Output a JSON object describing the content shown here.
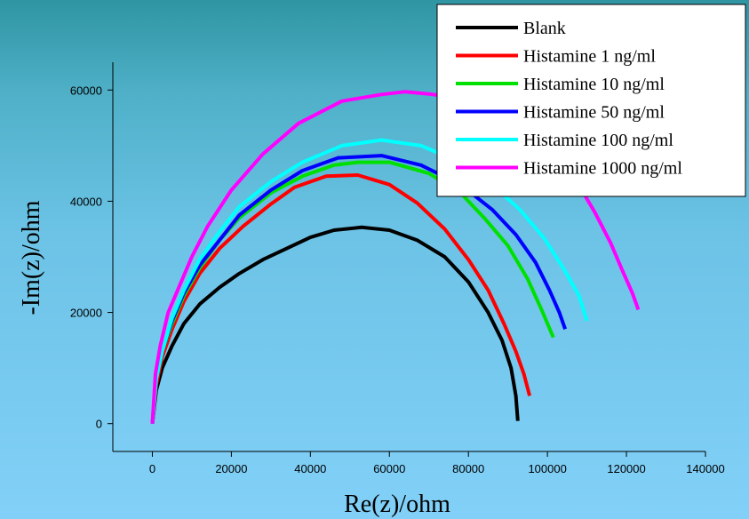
{
  "chart_data": {
    "type": "line",
    "title": "",
    "xlabel": "Re(z)/ohm",
    "ylabel": "-Im(z)/ohm",
    "xlim": [
      -10000,
      140000
    ],
    "ylim": [
      -5000,
      65000
    ],
    "xticks": [
      0,
      20000,
      40000,
      60000,
      80000,
      100000,
      120000,
      140000
    ],
    "yticks": [
      0,
      20000,
      40000,
      60000
    ],
    "legend_position": "top-right",
    "grid": false,
    "series": [
      {
        "name": "Blank",
        "color": "#000000",
        "points": [
          [
            0,
            0
          ],
          [
            1000,
            6000
          ],
          [
            2500,
            10000
          ],
          [
            5000,
            14000
          ],
          [
            8000,
            18000
          ],
          [
            12000,
            21500
          ],
          [
            17000,
            24500
          ],
          [
            22000,
            27000
          ],
          [
            28000,
            29500
          ],
          [
            34000,
            31500
          ],
          [
            40000,
            33500
          ],
          [
            46000,
            34800
          ],
          [
            53000,
            35300
          ],
          [
            60000,
            34800
          ],
          [
            67000,
            33000
          ],
          [
            74000,
            30000
          ],
          [
            80000,
            25500
          ],
          [
            85000,
            20000
          ],
          [
            88500,
            15000
          ],
          [
            90800,
            10000
          ],
          [
            92000,
            5000
          ],
          [
            92500,
            500
          ]
        ]
      },
      {
        "name": "Histamine 1 ng/ml",
        "color": "#ff0000",
        "points": [
          [
            0,
            0
          ],
          [
            1000,
            7000
          ],
          [
            2500,
            12000
          ],
          [
            5000,
            17000
          ],
          [
            8000,
            22000
          ],
          [
            12000,
            27000
          ],
          [
            17000,
            31500
          ],
          [
            23000,
            35500
          ],
          [
            30000,
            39500
          ],
          [
            36000,
            42500
          ],
          [
            44000,
            44500
          ],
          [
            52000,
            44700
          ],
          [
            60000,
            43000
          ],
          [
            67000,
            39700
          ],
          [
            74000,
            35000
          ],
          [
            80000,
            29500
          ],
          [
            85000,
            24000
          ],
          [
            89000,
            18000
          ],
          [
            92000,
            13000
          ],
          [
            94000,
            9000
          ],
          [
            95500,
            5000
          ]
        ]
      },
      {
        "name": "Histamine 10 ng/ml",
        "color": "#00e000",
        "points": [
          [
            0,
            0
          ],
          [
            1000,
            8000
          ],
          [
            2500,
            13000
          ],
          [
            5000,
            18000
          ],
          [
            8000,
            23000
          ],
          [
            12000,
            28000
          ],
          [
            17000,
            33000
          ],
          [
            22000,
            37000
          ],
          [
            30000,
            41500
          ],
          [
            38000,
            44500
          ],
          [
            46000,
            46500
          ],
          [
            52000,
            47000
          ],
          [
            60000,
            47000
          ],
          [
            70000,
            45000
          ],
          [
            78000,
            41500
          ],
          [
            84000,
            37000
          ],
          [
            90000,
            32000
          ],
          [
            95000,
            26000
          ],
          [
            98500,
            20500
          ],
          [
            101500,
            15500
          ]
        ]
      },
      {
        "name": "Histamine 50 ng/ml",
        "color": "#0000ff",
        "points": [
          [
            0,
            0
          ],
          [
            1000,
            8000
          ],
          [
            2500,
            13000
          ],
          [
            5000,
            18500
          ],
          [
            8000,
            23500
          ],
          [
            12000,
            28500
          ],
          [
            17000,
            33000
          ],
          [
            22000,
            37500
          ],
          [
            30000,
            42000
          ],
          [
            38000,
            45500
          ],
          [
            47000,
            47800
          ],
          [
            58000,
            48200
          ],
          [
            68000,
            46500
          ],
          [
            78000,
            43000
          ],
          [
            86000,
            38500
          ],
          [
            92000,
            34000
          ],
          [
            97000,
            29000
          ],
          [
            100500,
            24000
          ],
          [
            103000,
            20000
          ],
          [
            104500,
            17000
          ]
        ]
      },
      {
        "name": "Histamine 100 ng/ml",
        "color": "#00ffff",
        "points": [
          [
            0,
            0
          ],
          [
            1000,
            8000
          ],
          [
            2500,
            13000
          ],
          [
            5000,
            19000
          ],
          [
            8000,
            24000
          ],
          [
            12000,
            29500
          ],
          [
            17000,
            34500
          ],
          [
            22000,
            39000
          ],
          [
            30000,
            43500
          ],
          [
            38000,
            47000
          ],
          [
            48000,
            50000
          ],
          [
            58000,
            51000
          ],
          [
            68000,
            50000
          ],
          [
            78000,
            47000
          ],
          [
            86000,
            43000
          ],
          [
            93000,
            38500
          ],
          [
            99000,
            33500
          ],
          [
            104000,
            28000
          ],
          [
            108000,
            23000
          ],
          [
            110000,
            18500
          ]
        ]
      },
      {
        "name": "Histamine 1000 ng/ml",
        "color": "#ff00ff",
        "points": [
          [
            0,
            0
          ],
          [
            800,
            9000
          ],
          [
            2000,
            14000
          ],
          [
            4000,
            20000
          ],
          [
            7000,
            25000
          ],
          [
            10000,
            30000
          ],
          [
            14000,
            35500
          ],
          [
            20000,
            42000
          ],
          [
            28000,
            48500
          ],
          [
            37000,
            54000
          ],
          [
            48000,
            58000
          ],
          [
            58000,
            59200
          ],
          [
            64000,
            59700
          ],
          [
            70000,
            59300
          ],
          [
            78000,
            58500
          ],
          [
            86000,
            56500
          ],
          [
            94000,
            53500
          ],
          [
            101000,
            49500
          ],
          [
            107000,
            44000
          ],
          [
            112000,
            38000
          ],
          [
            116000,
            32500
          ],
          [
            119000,
            27500
          ],
          [
            121500,
            23500
          ],
          [
            123000,
            20500
          ]
        ]
      }
    ]
  }
}
